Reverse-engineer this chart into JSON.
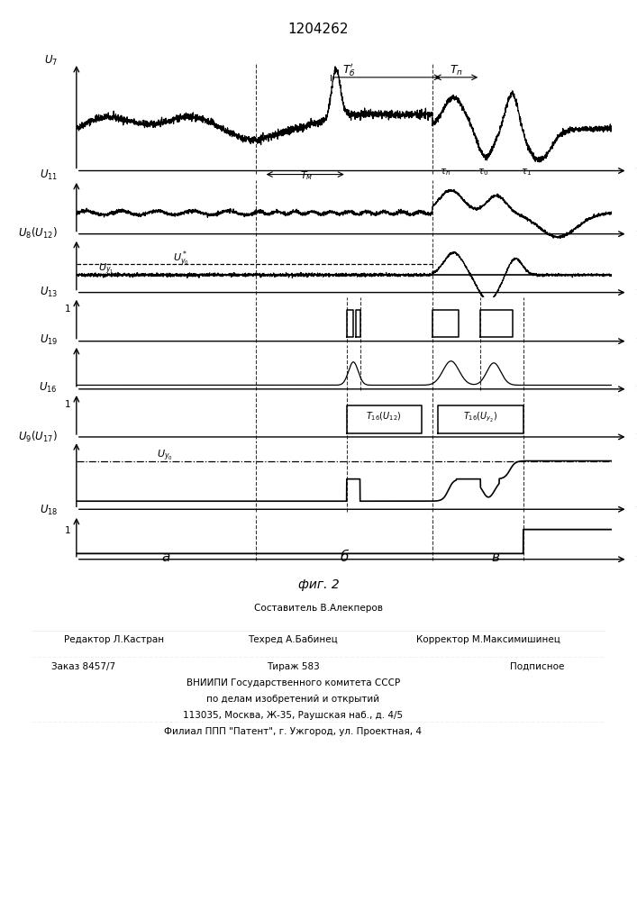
{
  "title": "1204262",
  "fig_label": "фиг. 2",
  "background_color": "#ffffff",
  "line_color": "#000000",
  "vlines_major": [
    3.35,
    6.65
  ],
  "vlines_all": [
    3.35,
    5.05,
    5.3,
    6.65,
    7.55,
    8.35
  ],
  "x_min": 0,
  "x_max": 10,
  "row_labels": [
    "$U_7$",
    "$U_{11}$",
    "$U_8(U_{12})$",
    "$U_{13}$",
    "$U_{19}$",
    "$U_{16}$",
    "$U_9(U_{17})$",
    "$U_{18}$"
  ],
  "footer_col1": "Редактор Л.Кастран",
  "footer_col2a": "Составитель В.Алекперов",
  "footer_col2b": "Техред А.Бабинец",
  "footer_col3": "Корректор М.Максимишинец",
  "footer_order": "Заказ 8457/7",
  "footer_tirazh": "Тираж 583",
  "footer_podp": "Подписное",
  "footer_vniip1": "ВНИИПИ Государственного комитета СССР",
  "footer_vniip2": "по делам изобретений и открытий",
  "footer_vniip3": "113035, Москва, Ж-35, Раушская наб., д. 4/5",
  "footer_filial": "Филиал ППП \"Патент\", г. Ужгород, ул. Проектная, 4"
}
